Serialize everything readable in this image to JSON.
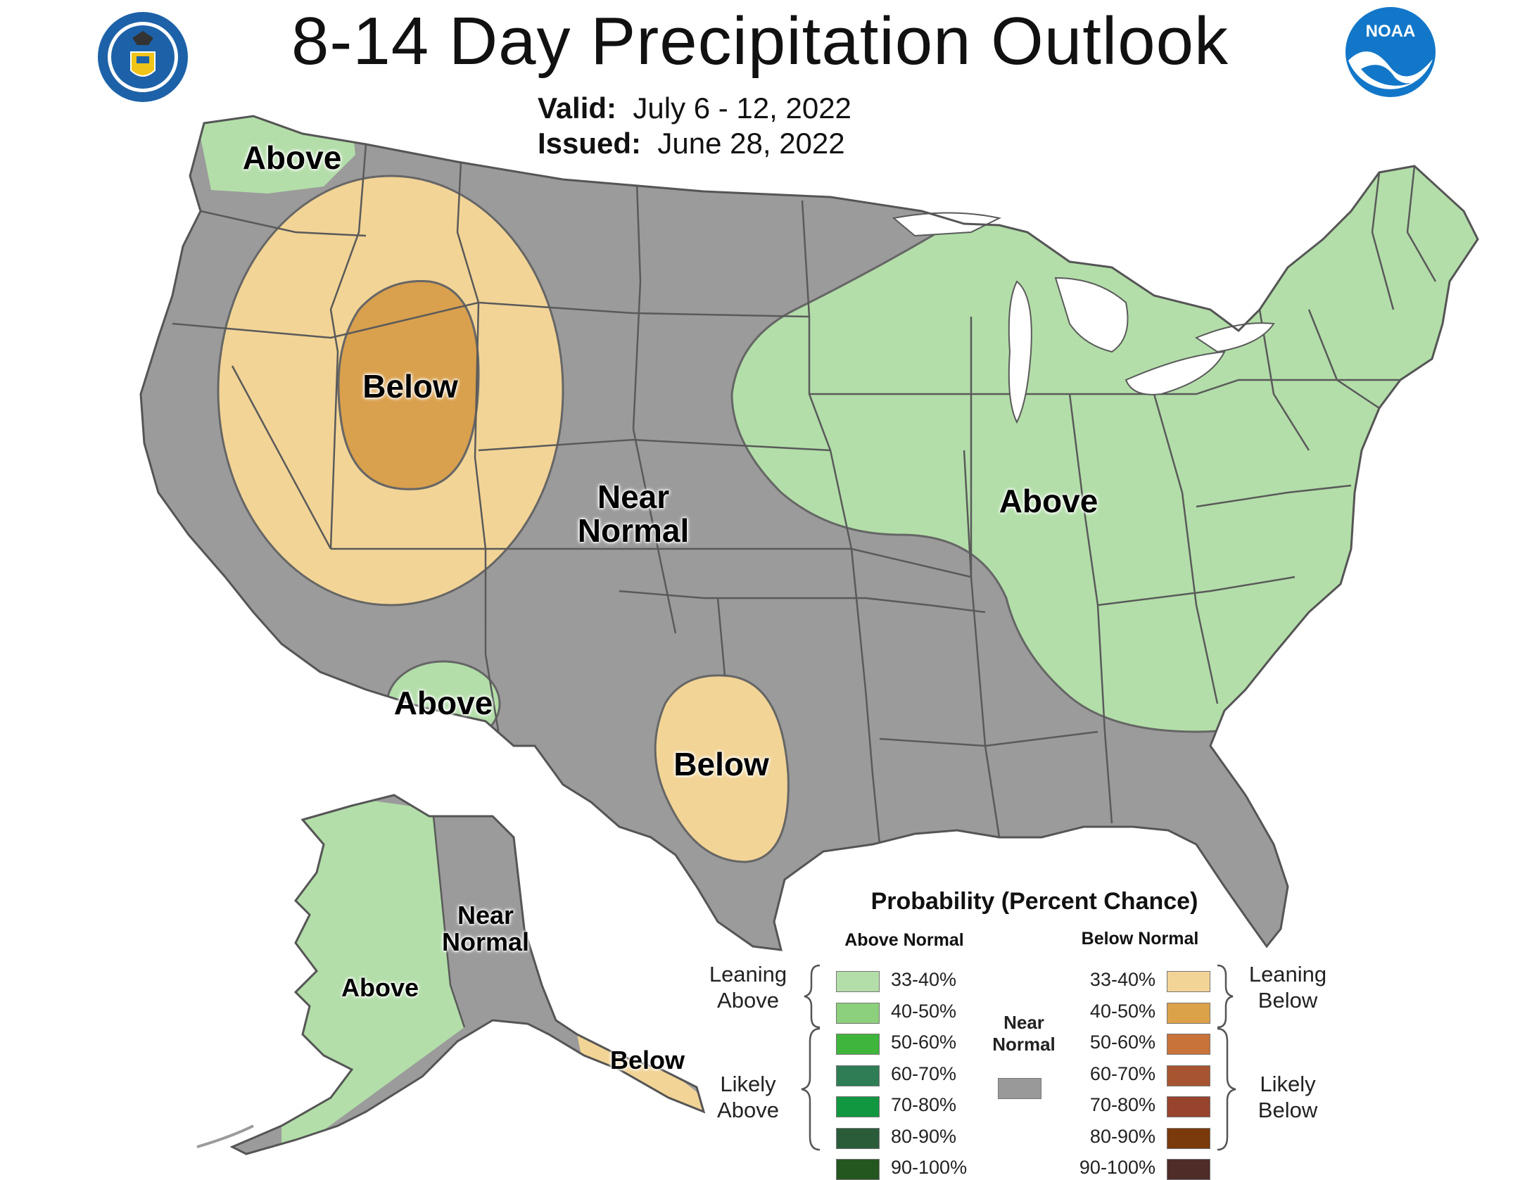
{
  "title": "8-14 Day Precipitation Outlook",
  "valid": {
    "label": "Valid:",
    "value": "July 6 - 12, 2022"
  },
  "issued": {
    "label": "Issued:",
    "value": "June 28, 2022"
  },
  "logos": {
    "left": "department-of-commerce-seal",
    "right": "noaa-logo",
    "noaa_text": "NOAA"
  },
  "map_labels": {
    "wa_above": "Above",
    "west_below": "Below",
    "near_normal": "Near Normal",
    "east_above": "Above",
    "az_above": "Above",
    "tx_below": "Below",
    "ak_above": "Above",
    "ak_near_normal": "Near Normal",
    "ak_below": "Below"
  },
  "legend": {
    "title": "Probability (Percent Chance)",
    "above_header": "Above Normal",
    "below_header": "Below Normal",
    "leaning_above": "Leaning Above",
    "likely_above": "Likely Above",
    "leaning_below": "Leaning Below",
    "likely_below": "Likely Below",
    "near_normal": "Near Normal",
    "near_normal_color": "#999999",
    "above": [
      {
        "range": "33-40%",
        "color": "#b3dea9"
      },
      {
        "range": "40-50%",
        "color": "#8ccf7c"
      },
      {
        "range": "50-60%",
        "color": "#3fb53c"
      },
      {
        "range": "60-70%",
        "color": "#2e7d55"
      },
      {
        "range": "70-80%",
        "color": "#119740"
      },
      {
        "range": "80-90%",
        "color": "#2b5c3a"
      },
      {
        "range": "90-100%",
        "color": "#24561f"
      }
    ],
    "below": [
      {
        "range": "33-40%",
        "color": "#f2d496"
      },
      {
        "range": "40-50%",
        "color": "#dca24a"
      },
      {
        "range": "50-60%",
        "color": "#c8733a"
      },
      {
        "range": "60-70%",
        "color": "#a65530"
      },
      {
        "range": "70-80%",
        "color": "#97432d"
      },
      {
        "range": "80-90%",
        "color": "#7a3a0b"
      },
      {
        "range": "90-100%",
        "color": "#4f2c28"
      }
    ]
  },
  "colors": {
    "near_normal": "#9b9b9b",
    "above_33_40": "#b3dea9",
    "below_33_40": "#f2d496",
    "below_40_50": "#d9a04d",
    "state_lines": "#5a5a5a",
    "lake": "#ffffff"
  }
}
